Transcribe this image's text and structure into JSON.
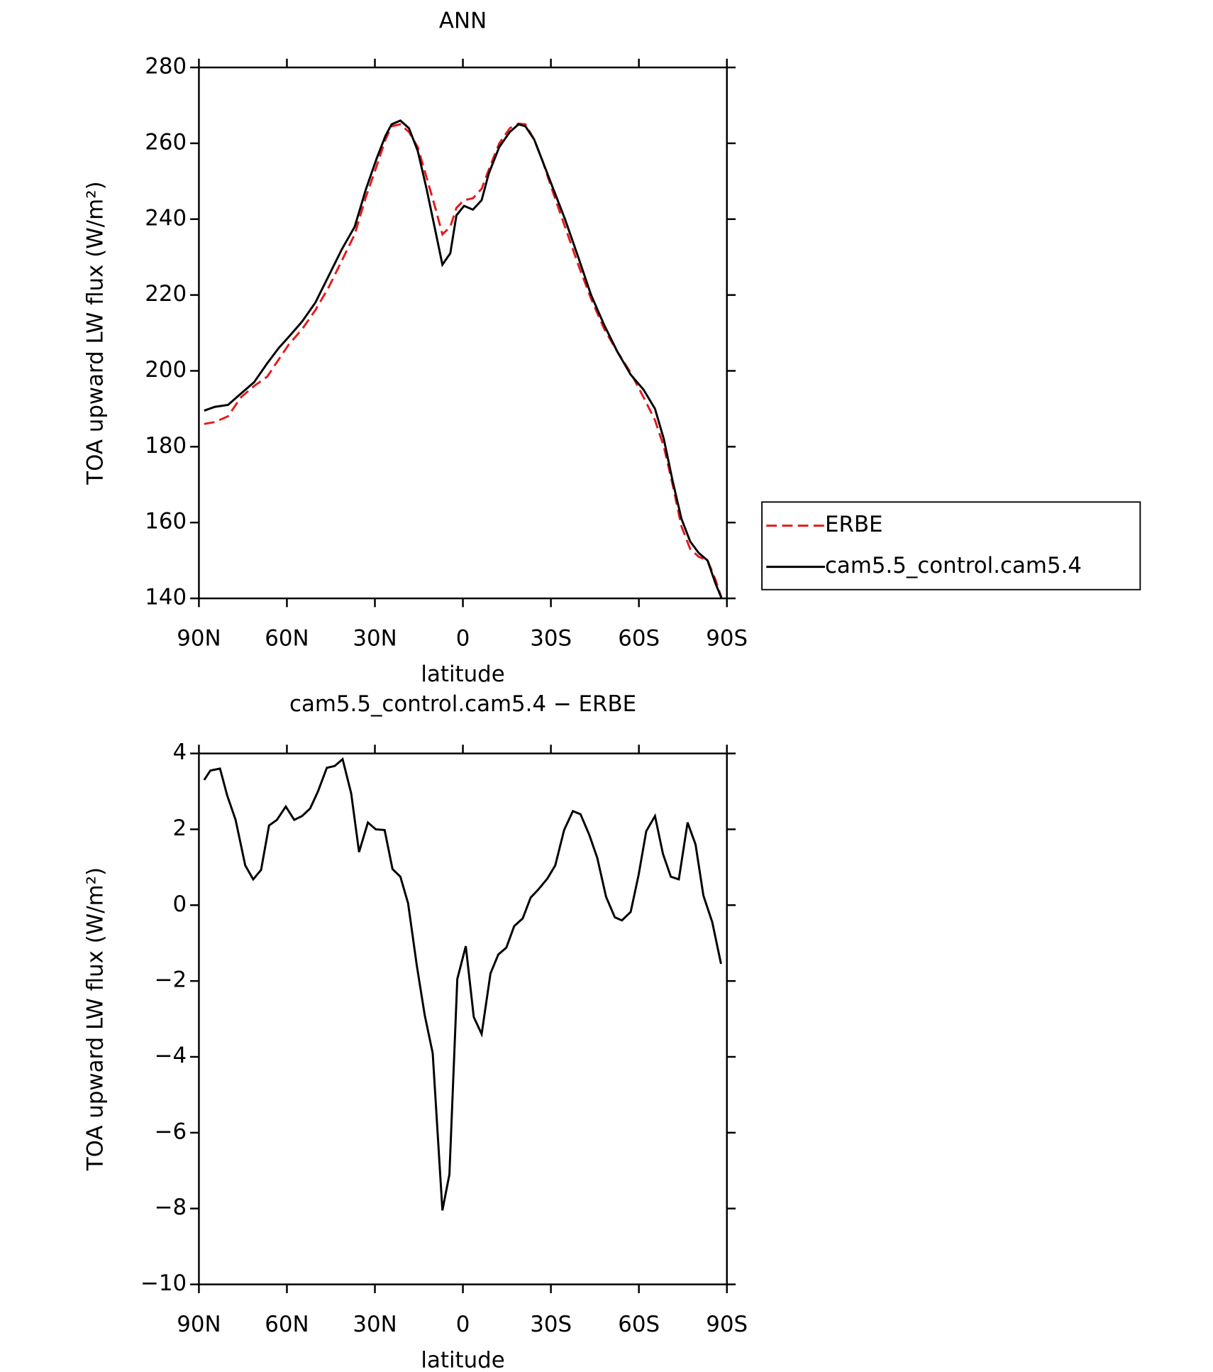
{
  "chart_data": [
    {
      "type": "line",
      "title": "ANN",
      "x_label": "latitude",
      "y_label": "TOA upward LW flux (W/m²)",
      "x": [
        88.2,
        84.6,
        80.1,
        75.7,
        71.2,
        66.7,
        62.8,
        59.3,
        54.8,
        50.3,
        45.8,
        41.3,
        36.9,
        33.0,
        29.4,
        26.4,
        24.3,
        21.3,
        18.4,
        15.4,
        12.4,
        9.4,
        7.0,
        4.3,
        2.2,
        -0.4,
        -3.4,
        -6.4,
        -8.8,
        -12.4,
        -16.0,
        -19.0,
        -21.3,
        -24.3,
        -27.3,
        -30.3,
        -34.8,
        -39.3,
        -43.7,
        -48.2,
        -52.7,
        -57.2,
        -61.6,
        -65.5,
        -68.5,
        -71.5,
        -74.5,
        -77.5,
        -80.4,
        -83.4,
        -86.1,
        -88.2
      ],
      "series": [
        {
          "name": "ERBE",
          "color": "#e41a1c",
          "line_style": "dashed",
          "values": [
            186,
            186.5,
            188,
            193,
            196,
            198.5,
            203,
            207,
            211,
            216,
            222,
            229,
            236,
            246,
            254,
            261,
            264.5,
            265,
            263,
            259,
            251,
            243,
            236,
            238,
            243,
            245,
            245.5,
            248,
            253,
            260,
            264,
            265.2,
            265,
            261,
            255,
            248,
            238,
            228,
            219,
            211,
            205,
            199.5,
            193,
            187,
            180,
            170,
            159,
            153,
            151,
            150,
            145,
            140
          ]
        },
        {
          "name": "cam5.5_control.cam5.4",
          "color": "#000000",
          "line_style": "solid",
          "values": [
            189.5,
            190.5,
            191,
            194,
            197,
            202,
            206,
            209,
            213,
            218,
            225,
            232,
            238,
            248,
            256,
            262,
            265,
            266,
            264,
            258,
            248,
            237,
            228,
            231,
            241,
            243.5,
            242.5,
            245,
            252,
            259,
            263,
            265,
            264.5,
            261,
            255,
            249,
            240,
            230,
            220,
            212,
            205,
            199,
            195,
            190,
            182,
            171,
            161,
            155,
            152,
            150,
            144,
            140
          ]
        }
      ],
      "xlim": [
        90,
        -90
      ],
      "xticks": [
        {
          "value": 90,
          "label": "90N"
        },
        {
          "value": 60,
          "label": "60N"
        },
        {
          "value": 30,
          "label": "30N"
        },
        0,
        {
          "value": -30,
          "label": "30S"
        },
        {
          "value": -60,
          "label": "60S"
        },
        {
          "value": -90,
          "label": "90S"
        }
      ],
      "ylim": [
        140,
        280
      ],
      "yticks": [
        140,
        160,
        180,
        200,
        220,
        240,
        260,
        280
      ],
      "legend": "right"
    },
    {
      "type": "line",
      "title": "cam5.5_control.cam5.4 − ERBE",
      "x_label": "latitude",
      "y_label": "TOA upward LW flux (W/m²)",
      "x": [
        88.2,
        86.1,
        82.8,
        80.4,
        77.5,
        74.2,
        71.5,
        68.8,
        66.1,
        63.4,
        60.4,
        57.5,
        54.8,
        52.1,
        49.4,
        46.4,
        43.7,
        41.0,
        38.1,
        35.4,
        32.4,
        29.7,
        26.7,
        24.0,
        21.3,
        18.7,
        15.7,
        13.0,
        10.3,
        7.0,
        4.6,
        1.9,
        -1.0,
        -3.7,
        -6.4,
        -9.4,
        -12.1,
        -14.8,
        -17.5,
        -20.4,
        -23.1,
        -25.8,
        -28.8,
        -31.5,
        -34.5,
        -37.5,
        -40.1,
        -43.1,
        -45.8,
        -48.8,
        -51.8,
        -54.2,
        -57.2,
        -59.9,
        -62.5,
        -65.5,
        -68.2,
        -70.9,
        -73.6,
        -76.6,
        -79.3,
        -82.0,
        -85.0,
        -88.0
      ],
      "series": [
        {
          "color": "#000000",
          "line_style": "solid",
          "values": [
            3.3,
            3.55,
            3.6,
            2.9,
            2.25,
            1.05,
            0.68,
            0.93,
            2.1,
            2.25,
            2.6,
            2.25,
            2.35,
            2.55,
            3.0,
            3.62,
            3.67,
            3.85,
            2.95,
            1.4,
            2.18,
            2.0,
            1.98,
            0.95,
            0.75,
            0.05,
            -1.6,
            -2.9,
            -3.9,
            -8.05,
            -7.1,
            -1.95,
            -1.08,
            -2.95,
            -3.4,
            -1.8,
            -1.3,
            -1.12,
            -0.55,
            -0.35,
            0.2,
            0.42,
            0.7,
            1.05,
            1.98,
            2.48,
            2.4,
            1.85,
            1.25,
            0.22,
            -0.32,
            -0.4,
            -0.18,
            0.8,
            1.95,
            2.35,
            1.35,
            0.75,
            0.68,
            2.18,
            1.6,
            0.25,
            -0.45,
            -1.55
          ]
        }
      ],
      "xlim": [
        90,
        -90
      ],
      "xticks": [
        {
          "value": 90,
          "label": "90N"
        },
        {
          "value": 60,
          "label": "60N"
        },
        {
          "value": 30,
          "label": "30N"
        },
        0,
        {
          "value": -30,
          "label": "30S"
        },
        {
          "value": -60,
          "label": "60S"
        },
        {
          "value": -90,
          "label": "90S"
        }
      ],
      "ylim": [
        -10,
        4
      ],
      "yticks": [
        {
          "value": -10,
          "label": "−10"
        },
        {
          "value": -8,
          "label": "−8"
        },
        {
          "value": -6,
          "label": "−6"
        },
        {
          "value": -4,
          "label": "−4"
        },
        {
          "value": -2,
          "label": "−2"
        },
        0,
        2,
        4
      ]
    }
  ]
}
